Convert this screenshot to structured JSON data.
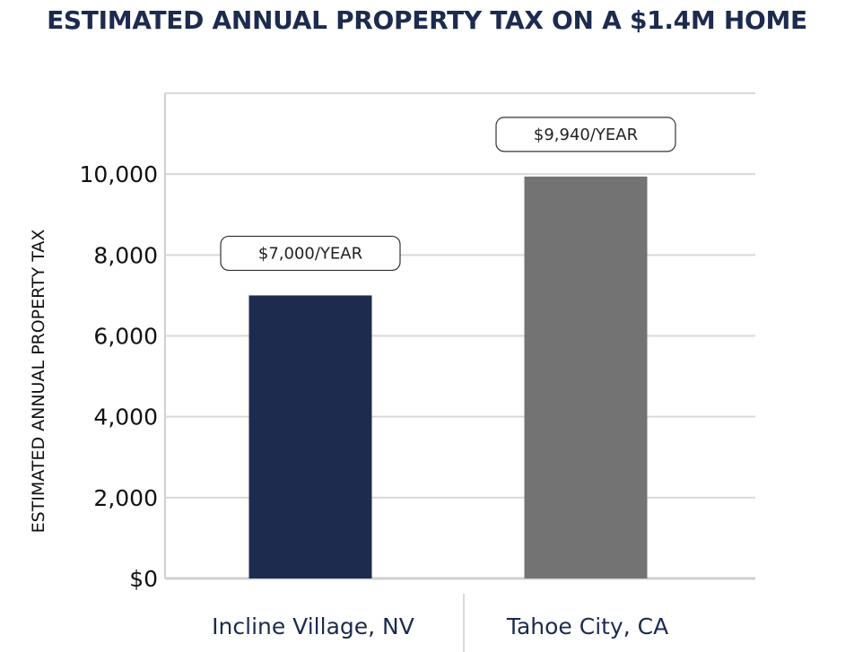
{
  "chart_data": {
    "type": "bar",
    "title": "ESTIMATED ANNUAL PROPERTY TAX ON A $1.4M HOME",
    "ylabel": "ESTIMATED ANNUAL PROPERTY TAX",
    "xlabel": "",
    "categories": [
      "Incline Village, NV",
      "Tahoe City, CA"
    ],
    "values": [
      7000,
      9940
    ],
    "data_labels": [
      "$7,000/YEAR",
      "$9,940/YEAR"
    ],
    "bar_colors": [
      "#1c2b4e",
      "#737373"
    ],
    "ylim": [
      0,
      12000
    ],
    "yticks": [
      0,
      2000,
      4000,
      6000,
      8000,
      10000
    ],
    "ytick_labels": [
      "$0",
      "2,000",
      "4,000",
      "6,000",
      "8,000",
      "10,000"
    ],
    "grid": true,
    "legend": "none"
  }
}
